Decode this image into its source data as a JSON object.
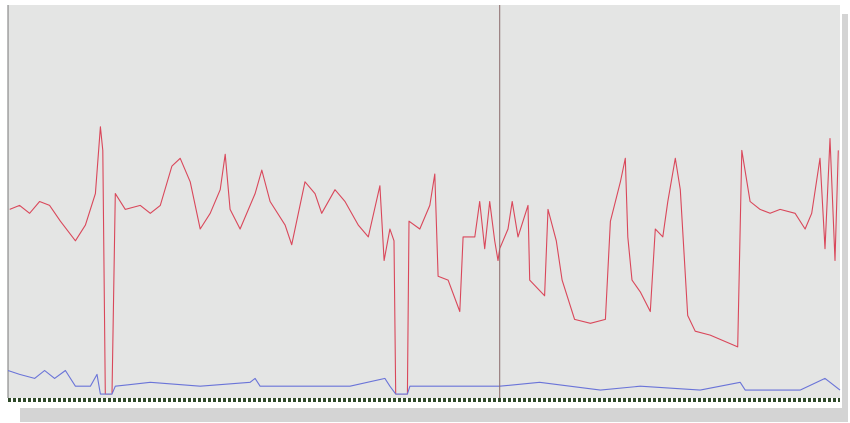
{
  "chart_data": {
    "type": "line",
    "xlim": [
      0,
      100
    ],
    "ylim": [
      0,
      100
    ],
    "cursor_x": 59.1,
    "series": [
      {
        "color": "#d9475a",
        "x": [
          0.2,
          1.4,
          2.6,
          3.8,
          5.0,
          6.3,
          8.1,
          9.3,
          10.5,
          11.1,
          11.4,
          11.7,
          12.5,
          12.9,
          14.1,
          15.9,
          17.1,
          18.3,
          19.7,
          20.7,
          21.9,
          23.1,
          24.3,
          25.5,
          26.1,
          26.7,
          27.9,
          29.7,
          30.5,
          31.5,
          33.3,
          34.1,
          35.7,
          36.9,
          37.7,
          39.3,
          40.5,
          42.1,
          43.3,
          44.7,
          45.2,
          45.9,
          46.4,
          46.6,
          48.0,
          48.2,
          49.5,
          50.7,
          51.3,
          51.7,
          52.9,
          54.3,
          54.7,
          56.1,
          56.7,
          57.3,
          57.9,
          58.5,
          58.9,
          59.1,
          60.1,
          60.6,
          61.3,
          62.5,
          62.7,
          64.5,
          64.9,
          65.9,
          66.6,
          67.5,
          68.1,
          70.0,
          71.8,
          72.4,
          73.6,
          74.2,
          74.5,
          75.0,
          76.0,
          77.2,
          77.8,
          78.7,
          79.3,
          80.2,
          80.8,
          81.7,
          82.6,
          84.4,
          87.7,
          88.2,
          89.2,
          90.4,
          91.6,
          92.8,
          94.6,
          95.8,
          96.6,
          97.6,
          98.2,
          98.8,
          99.4,
          99.8
        ],
        "values": [
          48,
          49,
          47,
          50,
          49,
          45,
          40,
          44,
          52,
          69,
          63,
          1,
          1,
          52,
          48,
          49,
          47,
          49,
          59,
          61,
          55,
          43,
          47,
          53,
          62,
          48,
          43,
          52,
          58,
          50,
          44,
          39,
          55,
          52,
          47,
          53,
          50,
          44,
          41,
          54,
          35,
          43,
          40,
          1,
          1,
          45,
          43,
          49,
          57,
          31,
          30,
          22,
          41,
          41,
          50,
          38,
          50,
          40,
          35,
          38,
          43,
          50,
          41,
          49,
          30,
          26,
          48,
          40,
          30,
          24,
          20,
          19,
          20,
          45,
          55,
          61,
          41,
          30,
          27,
          22,
          43,
          41,
          50,
          61,
          53,
          21,
          17,
          16,
          13,
          63,
          50,
          48,
          47,
          48,
          47,
          43,
          47,
          61,
          38,
          66,
          35,
          63
        ]
      },
      {
        "color": "#6a74d8",
        "x": [
          0,
          1.4,
          3.2,
          4.4,
          5.6,
          6.9,
          8.1,
          9.9,
          10.7,
          11.1,
          12.5,
          12.9,
          17.1,
          23.1,
          29.1,
          29.7,
          30.3,
          35.1,
          41.1,
          45.3,
          45.9,
          46.6,
          48.0,
          48.3,
          59.1,
          63.9,
          71.2,
          76.0,
          83.2,
          88.0,
          88.6,
          95.2,
          98.2,
          100
        ],
        "values": [
          7,
          6,
          5,
          7,
          5,
          7,
          3,
          3,
          6,
          1,
          1,
          3,
          4,
          3,
          4,
          5,
          3,
          3,
          3,
          5,
          3,
          1,
          1,
          3,
          3,
          4,
          2,
          3,
          2,
          4,
          2,
          2,
          5,
          2
        ]
      }
    ]
  }
}
